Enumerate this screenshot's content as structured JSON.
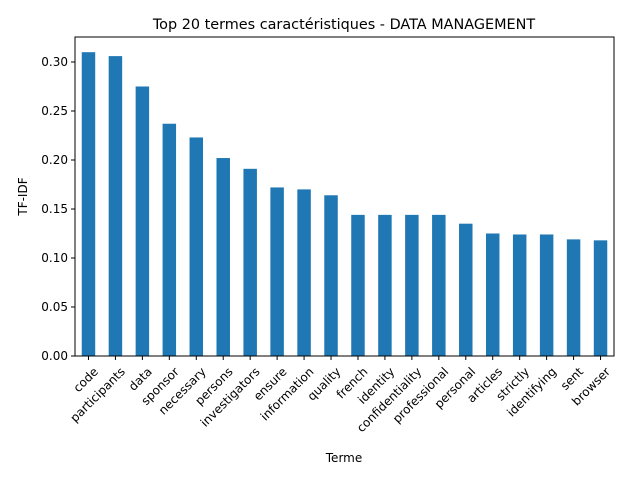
{
  "chart_data": {
    "type": "bar",
    "title": "Top 20 termes caractéristiques - DATA MANAGEMENT",
    "xlabel": "Terme",
    "ylabel": "TF-IDF",
    "categories": [
      "code",
      "participants",
      "data",
      "sponsor",
      "necessary",
      "persons",
      "investigators",
      "ensure",
      "information",
      "quality",
      "french",
      "identity",
      "confidentiality",
      "professional",
      "personal",
      "articles",
      "strictly",
      "identifying",
      "sent",
      "browser"
    ],
    "values": [
      0.31,
      0.306,
      0.275,
      0.237,
      0.223,
      0.202,
      0.191,
      0.172,
      0.17,
      0.164,
      0.144,
      0.144,
      0.144,
      0.144,
      0.135,
      0.125,
      0.124,
      0.124,
      0.119,
      0.118
    ],
    "yticks": [
      "0.00",
      "0.05",
      "0.10",
      "0.15",
      "0.20",
      "0.25",
      "0.30"
    ],
    "ylim": [
      0,
      0.3255
    ],
    "bar_color": "#1f77b4",
    "grid": false,
    "legend": false
  }
}
